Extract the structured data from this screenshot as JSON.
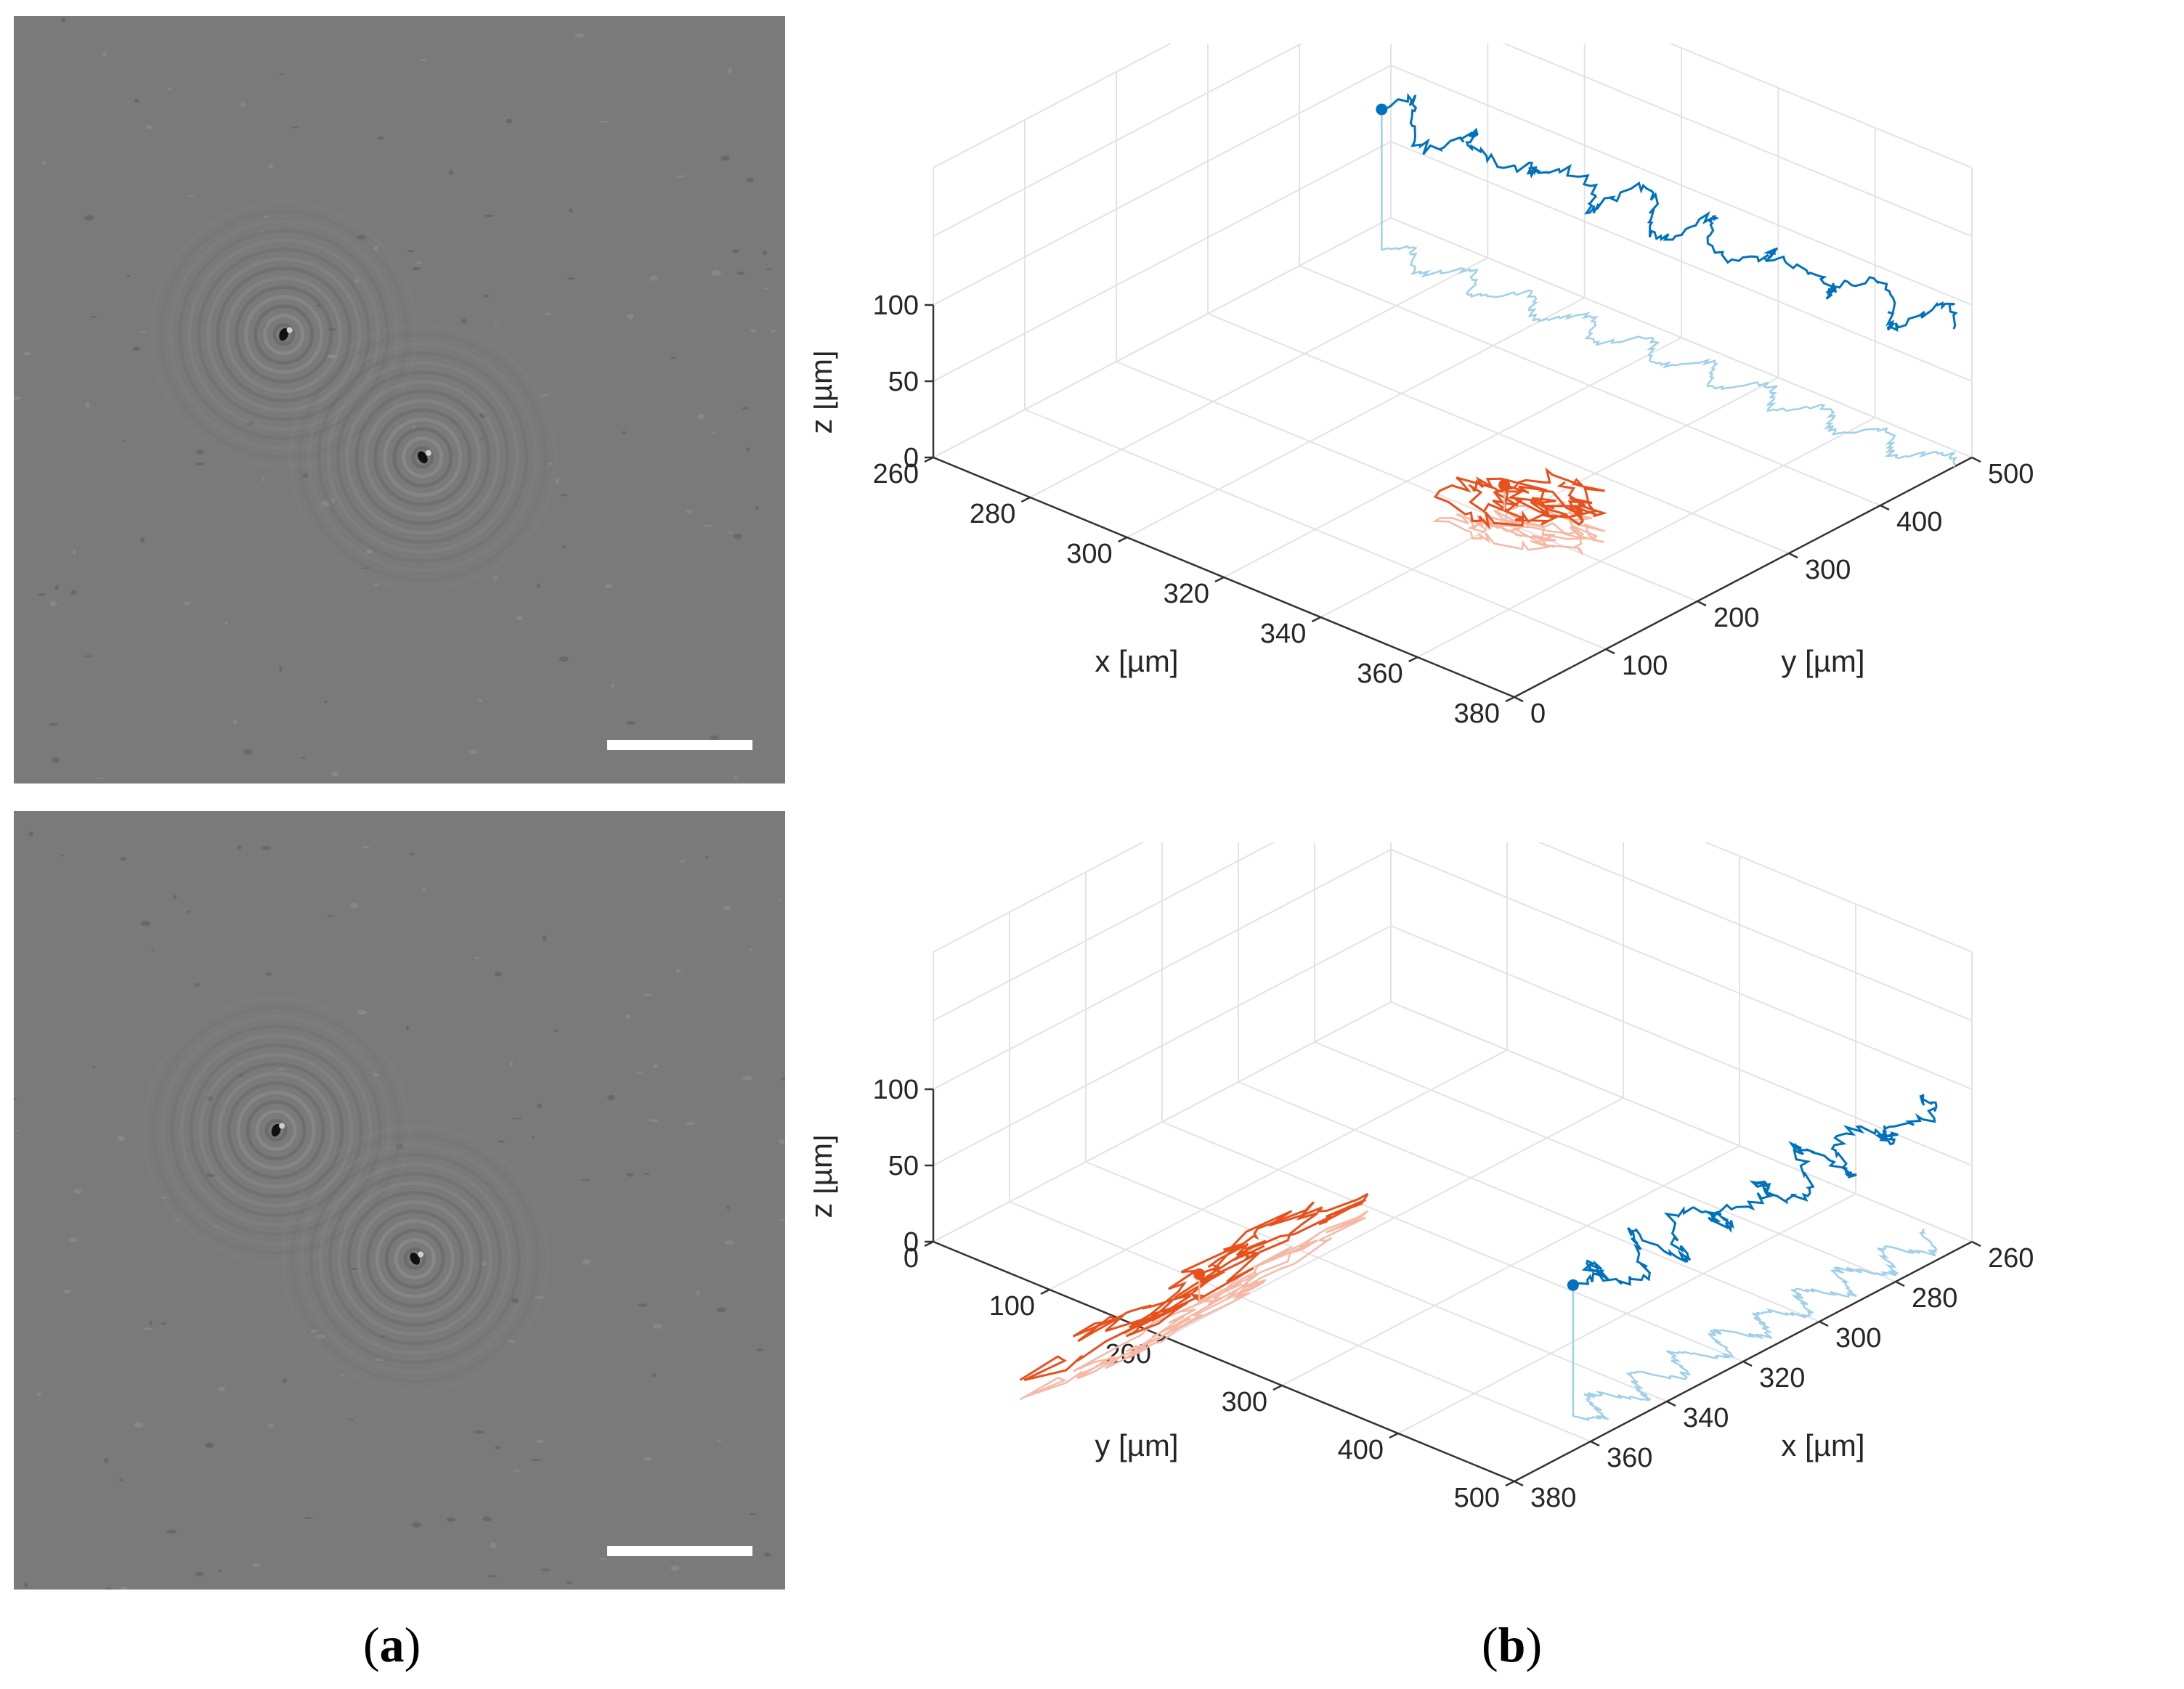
{
  "figure": {
    "panel_labels": [
      {
        "open": "(",
        "letter": "a",
        "close": ")"
      },
      {
        "open": "(",
        "letter": "b",
        "close": ")"
      }
    ]
  },
  "colors": {
    "track1": "#0072bd",
    "track1_shadow": "#9fd0ea",
    "track2": "#e8501c",
    "track2_shadow": "#f6b8a4",
    "grid": "#e3e3e3",
    "axis": "#333333",
    "hologram_bg": "#7a7a7a",
    "scale_bar": "#ffffff"
  },
  "holograms": [
    {
      "name": "hologram-top",
      "objects": [
        {
          "fx": 0.35,
          "fy": 0.415
        },
        {
          "fx": 0.53,
          "fy": 0.575
        }
      ]
    },
    {
      "name": "hologram-bottom",
      "objects": [
        {
          "fx": 0.34,
          "fy": 0.41
        },
        {
          "fx": 0.52,
          "fy": 0.575
        }
      ]
    }
  ],
  "chart_data": [
    {
      "type": "scatter",
      "view": "3d",
      "title": "",
      "xlabel": "x [µm]",
      "ylabel": "y [µm]",
      "zlabel": "z [µm]",
      "xlim": [
        260,
        380
      ],
      "ylim": [
        0,
        500
      ],
      "zlim": [
        0,
        100
      ],
      "x_ticks": [
        "260",
        "280",
        "300",
        "320",
        "340",
        "360",
        "380"
      ],
      "y_ticks": [
        "0",
        "100",
        "200",
        "300",
        "400",
        "500"
      ],
      "z_ticks": [
        "0",
        "50",
        "100"
      ],
      "grid": true,
      "series": [
        {
          "color_key": "track1",
          "shadow_key": "track1_shadow",
          "start": {
            "x": 266,
            "y": 460,
            "z": 95
          },
          "end": {
            "x": 380,
            "y": 480,
            "z": 100
          },
          "style": "along_x"
        },
        {
          "color_key": "track2",
          "shadow_key": "track2_shadow",
          "start": {
            "x": 340,
            "y": 185,
            "z": 45
          },
          "end": {
            "x": 345,
            "y": 195,
            "z": 30
          },
          "style": "local"
        }
      ]
    },
    {
      "type": "scatter",
      "view": "3d",
      "title": "",
      "xlabel": "y [µm]",
      "ylabel": "x [µm]",
      "zlabel": "z [µm]",
      "xlim": [
        0,
        500
      ],
      "ylim": [
        380,
        260
      ],
      "zlim": [
        0,
        100
      ],
      "x_ticks": [
        "0",
        "100",
        "200",
        "300",
        "400",
        "500"
      ],
      "y_ticks": [
        "380",
        "360",
        "340",
        "320",
        "300",
        "280",
        "260"
      ],
      "z_ticks": [
        "0",
        "50",
        "100"
      ],
      "grid": true,
      "series": [
        {
          "color_key": "track1",
          "shadow_key": "track1_shadow",
          "start": {
            "x": 470,
            "y": 355,
            "z": 95
          },
          "end": {
            "x": 478,
            "y": 262,
            "z": 100
          },
          "style": "along_y"
        },
        {
          "color_key": "track2",
          "shadow_key": "track2_shadow",
          "start": {
            "x": 185,
            "y": 345,
            "z": 45
          },
          "end": {
            "x": 200,
            "y": 348,
            "z": 30
          },
          "style": "local"
        }
      ]
    }
  ]
}
